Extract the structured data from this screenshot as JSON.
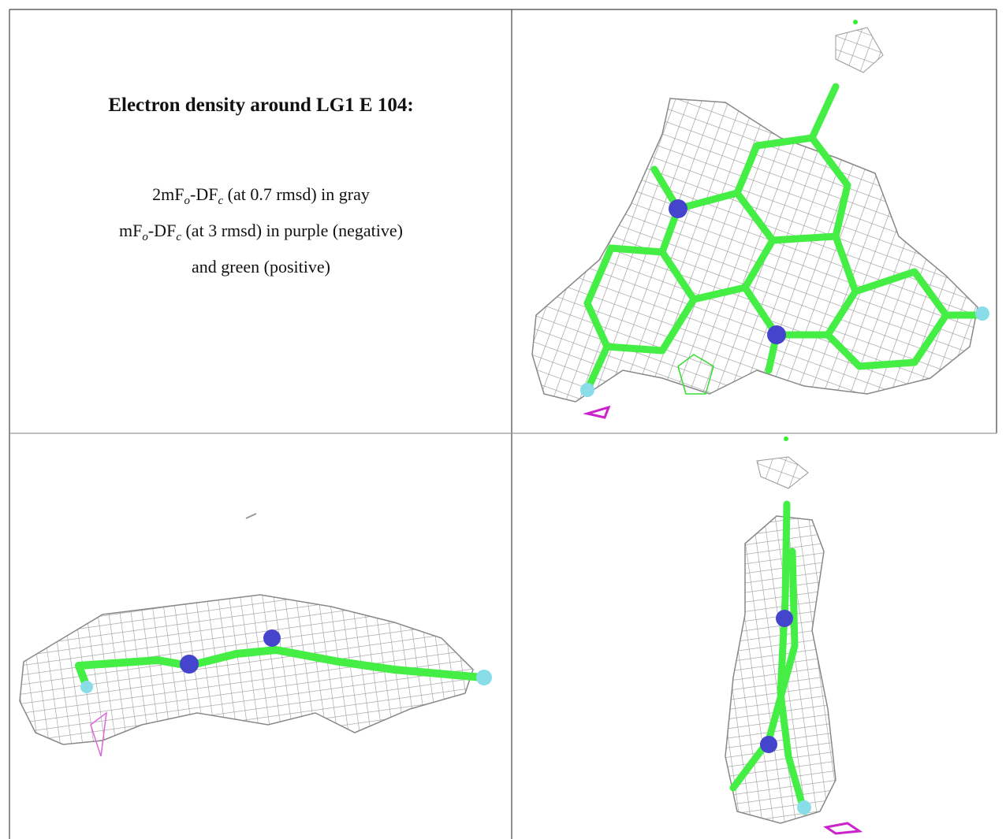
{
  "caption": {
    "title": "Electron density around LG1 E 104:",
    "lines": [
      [
        "2mF",
        "o",
        "-DF",
        "c",
        " (at 0.7 rmsd) in gray"
      ],
      [
        "mF",
        "o",
        "-DF",
        "c",
        " (at 3 rmsd) in purple (negative)"
      ],
      [
        "and green (positive)"
      ]
    ]
  }
}
